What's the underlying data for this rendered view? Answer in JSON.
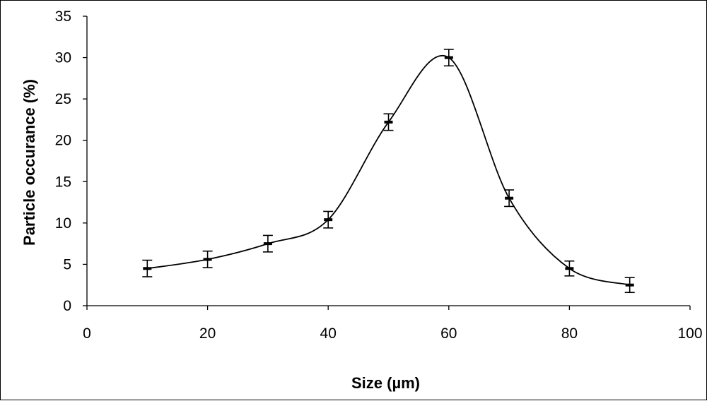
{
  "chart_data": {
    "type": "line",
    "title": "",
    "xlabel": "Size (µm)",
    "ylabel": "Particle occurance (%)",
    "xlim": [
      0,
      100
    ],
    "ylim": [
      0,
      35
    ],
    "x_ticks": [
      0,
      20,
      40,
      60,
      80,
      100
    ],
    "y_ticks": [
      0,
      5,
      10,
      15,
      20,
      25,
      30,
      35
    ],
    "grid": false,
    "legend": "none",
    "smoothed": true,
    "line_color": "#000000",
    "series": [
      {
        "x": [
          10,
          20,
          30,
          40,
          50,
          60,
          70,
          80,
          90
        ],
        "y": [
          4.5,
          5.6,
          7.5,
          10.4,
          22.2,
          30.0,
          13.0,
          4.5,
          2.5
        ],
        "error": [
          1.0,
          1.0,
          1.0,
          1.0,
          1.0,
          1.0,
          1.0,
          0.9,
          0.9
        ]
      }
    ]
  }
}
